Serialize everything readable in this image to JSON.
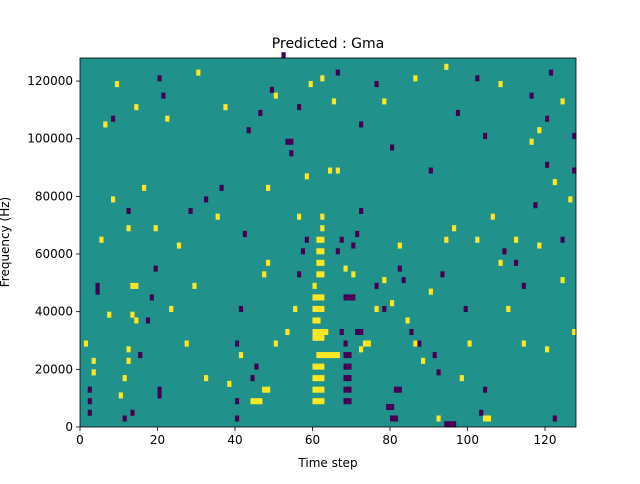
{
  "chart_data": {
    "type": "heatmap",
    "title": "Predicted : Gma",
    "xlabel": "Time step",
    "ylabel": "Frequency (Hz)",
    "xlim": [
      0,
      128
    ],
    "ylim": [
      0,
      128000
    ],
    "x_ticks": [
      {
        "value": 0,
        "label": "0"
      },
      {
        "value": 20,
        "label": "20"
      },
      {
        "value": 40,
        "label": "40"
      },
      {
        "value": 60,
        "label": "60"
      },
      {
        "value": 80,
        "label": "80"
      },
      {
        "value": 100,
        "label": "100"
      },
      {
        "value": 120,
        "label": "120"
      }
    ],
    "y_ticks": [
      {
        "value": 0,
        "label": "0"
      },
      {
        "value": 20000,
        "label": "20000"
      },
      {
        "value": 40000,
        "label": "40000"
      },
      {
        "value": 60000,
        "label": "60000"
      },
      {
        "value": 80000,
        "label": "80000"
      },
      {
        "value": 100000,
        "label": "100000"
      },
      {
        "value": 120000,
        "label": "120000"
      }
    ],
    "n_time_steps": 128,
    "n_frequency_bins": 64,
    "colormap": "viridis",
    "color_levels": {
      "low": "#440154",
      "mid": "#21918c",
      "high": "#fde725"
    },
    "background_level": "mid",
    "grid": false,
    "legend": "none",
    "cells": [
      {
        "t": 60,
        "f": 9000,
        "v": "high"
      },
      {
        "t": 61,
        "f": 9000,
        "v": "high"
      },
      {
        "t": 62,
        "f": 9000,
        "v": "high"
      },
      {
        "t": 60,
        "f": 13000,
        "v": "high"
      },
      {
        "t": 61,
        "f": 13000,
        "v": "high"
      },
      {
        "t": 62,
        "f": 13000,
        "v": "high"
      },
      {
        "t": 60,
        "f": 17000,
        "v": "high"
      },
      {
        "t": 61,
        "f": 17000,
        "v": "high"
      },
      {
        "t": 62,
        "f": 17000,
        "v": "high"
      },
      {
        "t": 60,
        "f": 21000,
        "v": "high"
      },
      {
        "t": 61,
        "f": 21000,
        "v": "high"
      },
      {
        "t": 62,
        "f": 21000,
        "v": "high"
      },
      {
        "t": 61,
        "f": 25000,
        "v": "high"
      },
      {
        "t": 62,
        "f": 25000,
        "v": "high"
      },
      {
        "t": 63,
        "f": 25000,
        "v": "high"
      },
      {
        "t": 64,
        "f": 25000,
        "v": "high"
      },
      {
        "t": 65,
        "f": 25000,
        "v": "high"
      },
      {
        "t": 66,
        "f": 25000,
        "v": "high"
      },
      {
        "t": 60,
        "f": 31000,
        "v": "high"
      },
      {
        "t": 61,
        "f": 31000,
        "v": "high"
      },
      {
        "t": 62,
        "f": 31000,
        "v": "high"
      },
      {
        "t": 60,
        "f": 33000,
        "v": "high"
      },
      {
        "t": 61,
        "f": 33000,
        "v": "high"
      },
      {
        "t": 62,
        "f": 33000,
        "v": "high"
      },
      {
        "t": 63,
        "f": 33000,
        "v": "high"
      },
      {
        "t": 60,
        "f": 37000,
        "v": "high"
      },
      {
        "t": 61,
        "f": 37000,
        "v": "high"
      },
      {
        "t": 60,
        "f": 41000,
        "v": "high"
      },
      {
        "t": 61,
        "f": 41000,
        "v": "high"
      },
      {
        "t": 62,
        "f": 41000,
        "v": "high"
      },
      {
        "t": 60,
        "f": 45000,
        "v": "high"
      },
      {
        "t": 61,
        "f": 45000,
        "v": "high"
      },
      {
        "t": 62,
        "f": 45000,
        "v": "high"
      },
      {
        "t": 60,
        "f": 49000,
        "v": "high"
      },
      {
        "t": 61,
        "f": 53000,
        "v": "high"
      },
      {
        "t": 62,
        "f": 53000,
        "v": "high"
      },
      {
        "t": 61,
        "f": 57000,
        "v": "high"
      },
      {
        "t": 62,
        "f": 57000,
        "v": "high"
      },
      {
        "t": 61,
        "f": 61000,
        "v": "high"
      },
      {
        "t": 62,
        "f": 61000,
        "v": "high"
      },
      {
        "t": 61,
        "f": 65000,
        "v": "high"
      },
      {
        "t": 62,
        "f": 65000,
        "v": "high"
      },
      {
        "t": 62,
        "f": 69000,
        "v": "high"
      },
      {
        "t": 62,
        "f": 73000,
        "v": "high"
      },
      {
        "t": 68,
        "f": 9000,
        "v": "low"
      },
      {
        "t": 69,
        "f": 9000,
        "v": "low"
      },
      {
        "t": 68,
        "f": 13000,
        "v": "low"
      },
      {
        "t": 69,
        "f": 13000,
        "v": "low"
      },
      {
        "t": 68,
        "f": 17000,
        "v": "low"
      },
      {
        "t": 69,
        "f": 17000,
        "v": "low"
      },
      {
        "t": 68,
        "f": 21000,
        "v": "low"
      },
      {
        "t": 69,
        "f": 21000,
        "v": "low"
      },
      {
        "t": 68,
        "f": 25000,
        "v": "low"
      },
      {
        "t": 69,
        "f": 25000,
        "v": "low"
      },
      {
        "t": 68,
        "f": 29000,
        "v": "low"
      },
      {
        "t": 67,
        "f": 33000,
        "v": "low"
      },
      {
        "t": 68,
        "f": 45000,
        "v": "low"
      },
      {
        "t": 69,
        "f": 45000,
        "v": "low"
      },
      {
        "t": 70,
        "f": 45000,
        "v": "low"
      },
      {
        "t": 71,
        "f": 33000,
        "v": "low"
      },
      {
        "t": 72,
        "f": 33000,
        "v": "low"
      },
      {
        "t": 53,
        "f": 99000,
        "v": "low"
      },
      {
        "t": 54,
        "f": 99000,
        "v": "low"
      },
      {
        "t": 54,
        "f": 95000,
        "v": "low"
      },
      {
        "t": 81,
        "f": 13000,
        "v": "low"
      },
      {
        "t": 82,
        "f": 13000,
        "v": "low"
      },
      {
        "t": 79,
        "f": 7000,
        "v": "low"
      },
      {
        "t": 80,
        "f": 7000,
        "v": "low"
      },
      {
        "t": 80,
        "f": 3000,
        "v": "low"
      },
      {
        "t": 81,
        "f": 3000,
        "v": "low"
      },
      {
        "t": 94,
        "f": 1000,
        "v": "low"
      },
      {
        "t": 95,
        "f": 1000,
        "v": "low"
      },
      {
        "t": 96,
        "f": 1000,
        "v": "low"
      },
      {
        "t": 4,
        "f": 49000,
        "v": "low"
      },
      {
        "t": 4,
        "f": 47000,
        "v": "low"
      },
      {
        "t": 2,
        "f": 5000,
        "v": "low"
      },
      {
        "t": 2,
        "f": 9000,
        "v": "low"
      },
      {
        "t": 2,
        "f": 13000,
        "v": "low"
      },
      {
        "t": 11,
        "f": 3000,
        "v": "low"
      },
      {
        "t": 13,
        "f": 5000,
        "v": "low"
      },
      {
        "t": 20,
        "f": 11000,
        "v": "low"
      },
      {
        "t": 20,
        "f": 13000,
        "v": "low"
      },
      {
        "t": 15,
        "f": 25000,
        "v": "low"
      },
      {
        "t": 17,
        "f": 37000,
        "v": "low"
      },
      {
        "t": 18,
        "f": 45000,
        "v": "low"
      },
      {
        "t": 19,
        "f": 55000,
        "v": "low"
      },
      {
        "t": 40,
        "f": 3000,
        "v": "low"
      },
      {
        "t": 40,
        "f": 9000,
        "v": "low"
      },
      {
        "t": 44,
        "f": 17000,
        "v": "low"
      },
      {
        "t": 45,
        "f": 21000,
        "v": "low"
      },
      {
        "t": 40,
        "f": 29000,
        "v": "low"
      },
      {
        "t": 41,
        "f": 41000,
        "v": "low"
      },
      {
        "t": 42,
        "f": 67000,
        "v": "low"
      },
      {
        "t": 43,
        "f": 103000,
        "v": "low"
      },
      {
        "t": 56,
        "f": 53000,
        "v": "low"
      },
      {
        "t": 58,
        "f": 65000,
        "v": "low"
      },
      {
        "t": 57,
        "f": 61000,
        "v": "low"
      },
      {
        "t": 66,
        "f": 61000,
        "v": "low"
      },
      {
        "t": 67,
        "f": 65000,
        "v": "low"
      },
      {
        "t": 70,
        "f": 63000,
        "v": "low"
      },
      {
        "t": 71,
        "f": 67000,
        "v": "low"
      },
      {
        "t": 72,
        "f": 75000,
        "v": "low"
      },
      {
        "t": 76,
        "f": 49000,
        "v": "low"
      },
      {
        "t": 78,
        "f": 41000,
        "v": "low"
      },
      {
        "t": 82,
        "f": 55000,
        "v": "low"
      },
      {
        "t": 83,
        "f": 51000,
        "v": "low"
      },
      {
        "t": 85,
        "f": 33000,
        "v": "low"
      },
      {
        "t": 87,
        "f": 29000,
        "v": "low"
      },
      {
        "t": 91,
        "f": 25000,
        "v": "low"
      },
      {
        "t": 92,
        "f": 19000,
        "v": "low"
      },
      {
        "t": 99,
        "f": 41000,
        "v": "low"
      },
      {
        "t": 103,
        "f": 5000,
        "v": "low"
      },
      {
        "t": 104,
        "f": 13000,
        "v": "low"
      },
      {
        "t": 109,
        "f": 61000,
        "v": "low"
      },
      {
        "t": 112,
        "f": 57000,
        "v": "low"
      },
      {
        "t": 114,
        "f": 49000,
        "v": "low"
      },
      {
        "t": 117,
        "f": 77000,
        "v": "low"
      },
      {
        "t": 120,
        "f": 91000,
        "v": "low"
      },
      {
        "t": 122,
        "f": 3000,
        "v": "low"
      },
      {
        "t": 124,
        "f": 65000,
        "v": "low"
      },
      {
        "t": 127,
        "f": 101000,
        "v": "low"
      },
      {
        "t": 127,
        "f": 89000,
        "v": "low"
      },
      {
        "t": 90,
        "f": 89000,
        "v": "low"
      },
      {
        "t": 93,
        "f": 53000,
        "v": "low"
      },
      {
        "t": 97,
        "f": 109000,
        "v": "low"
      },
      {
        "t": 102,
        "f": 121000,
        "v": "low"
      },
      {
        "t": 104,
        "f": 101000,
        "v": "low"
      },
      {
        "t": 116,
        "f": 115000,
        "v": "low"
      },
      {
        "t": 120,
        "f": 107000,
        "v": "low"
      },
      {
        "t": 121,
        "f": 123000,
        "v": "low"
      },
      {
        "t": 8,
        "f": 107000,
        "v": "low"
      },
      {
        "t": 12,
        "f": 75000,
        "v": "low"
      },
      {
        "t": 20,
        "f": 121000,
        "v": "low"
      },
      {
        "t": 21,
        "f": 115000,
        "v": "low"
      },
      {
        "t": 28,
        "f": 75000,
        "v": "low"
      },
      {
        "t": 32,
        "f": 79000,
        "v": "low"
      },
      {
        "t": 36,
        "f": 83000,
        "v": "low"
      },
      {
        "t": 46,
        "f": 109000,
        "v": "low"
      },
      {
        "t": 49,
        "f": 117000,
        "v": "low"
      },
      {
        "t": 52,
        "f": 129000,
        "v": "low"
      },
      {
        "t": 56,
        "f": 111000,
        "v": "low"
      },
      {
        "t": 66,
        "f": 123000,
        "v": "low"
      },
      {
        "t": 72,
        "f": 105000,
        "v": "low"
      },
      {
        "t": 76,
        "f": 119000,
        "v": "low"
      },
      {
        "t": 80,
        "f": 97000,
        "v": "low"
      },
      {
        "t": 1,
        "f": 29000,
        "v": "high"
      },
      {
        "t": 3,
        "f": 23000,
        "v": "high"
      },
      {
        "t": 3,
        "f": 19000,
        "v": "high"
      },
      {
        "t": 5,
        "f": 65000,
        "v": "high"
      },
      {
        "t": 7,
        "f": 39000,
        "v": "high"
      },
      {
        "t": 8,
        "f": 79000,
        "v": "high"
      },
      {
        "t": 10,
        "f": 11000,
        "v": "high"
      },
      {
        "t": 11,
        "f": 17000,
        "v": "high"
      },
      {
        "t": 12,
        "f": 23000,
        "v": "high"
      },
      {
        "t": 12,
        "f": 27000,
        "v": "high"
      },
      {
        "t": 13,
        "f": 39000,
        "v": "high"
      },
      {
        "t": 14,
        "f": 37000,
        "v": "high"
      },
      {
        "t": 13,
        "f": 49000,
        "v": "high"
      },
      {
        "t": 14,
        "f": 49000,
        "v": "high"
      },
      {
        "t": 12,
        "f": 69000,
        "v": "high"
      },
      {
        "t": 16,
        "f": 83000,
        "v": "high"
      },
      {
        "t": 19,
        "f": 69000,
        "v": "high"
      },
      {
        "t": 23,
        "f": 41000,
        "v": "high"
      },
      {
        "t": 25,
        "f": 63000,
        "v": "high"
      },
      {
        "t": 27,
        "f": 29000,
        "v": "high"
      },
      {
        "t": 29,
        "f": 49000,
        "v": "high"
      },
      {
        "t": 32,
        "f": 17000,
        "v": "high"
      },
      {
        "t": 35,
        "f": 73000,
        "v": "high"
      },
      {
        "t": 38,
        "f": 15000,
        "v": "high"
      },
      {
        "t": 41,
        "f": 25000,
        "v": "high"
      },
      {
        "t": 44,
        "f": 9000,
        "v": "high"
      },
      {
        "t": 45,
        "f": 9000,
        "v": "high"
      },
      {
        "t": 46,
        "f": 9000,
        "v": "high"
      },
      {
        "t": 47,
        "f": 13000,
        "v": "high"
      },
      {
        "t": 48,
        "f": 13000,
        "v": "high"
      },
      {
        "t": 47,
        "f": 53000,
        "v": "high"
      },
      {
        "t": 48,
        "f": 57000,
        "v": "high"
      },
      {
        "t": 48,
        "f": 83000,
        "v": "high"
      },
      {
        "t": 50,
        "f": 29000,
        "v": "high"
      },
      {
        "t": 53,
        "f": 33000,
        "v": "high"
      },
      {
        "t": 55,
        "f": 41000,
        "v": "high"
      },
      {
        "t": 56,
        "f": 73000,
        "v": "high"
      },
      {
        "t": 58,
        "f": 87000,
        "v": "high"
      },
      {
        "t": 59,
        "f": 119000,
        "v": "high"
      },
      {
        "t": 64,
        "f": 89000,
        "v": "high"
      },
      {
        "t": 65,
        "f": 113000,
        "v": "high"
      },
      {
        "t": 66,
        "f": 89000,
        "v": "high"
      },
      {
        "t": 68,
        "f": 55000,
        "v": "high"
      },
      {
        "t": 70,
        "f": 53000,
        "v": "high"
      },
      {
        "t": 72,
        "f": 27000,
        "v": "high"
      },
      {
        "t": 73,
        "f": 29000,
        "v": "high"
      },
      {
        "t": 74,
        "f": 29000,
        "v": "high"
      },
      {
        "t": 76,
        "f": 41000,
        "v": "high"
      },
      {
        "t": 78,
        "f": 51000,
        "v": "high"
      },
      {
        "t": 80,
        "f": 43000,
        "v": "high"
      },
      {
        "t": 82,
        "f": 63000,
        "v": "high"
      },
      {
        "t": 84,
        "f": 37000,
        "v": "high"
      },
      {
        "t": 86,
        "f": 29000,
        "v": "high"
      },
      {
        "t": 88,
        "f": 23000,
        "v": "high"
      },
      {
        "t": 90,
        "f": 47000,
        "v": "high"
      },
      {
        "t": 92,
        "f": 3000,
        "v": "high"
      },
      {
        "t": 94,
        "f": 65000,
        "v": "high"
      },
      {
        "t": 96,
        "f": 69000,
        "v": "high"
      },
      {
        "t": 98,
        "f": 17000,
        "v": "high"
      },
      {
        "t": 100,
        "f": 29000,
        "v": "high"
      },
      {
        "t": 102,
        "f": 65000,
        "v": "high"
      },
      {
        "t": 104,
        "f": 3000,
        "v": "high"
      },
      {
        "t": 105,
        "f": 3000,
        "v": "high"
      },
      {
        "t": 106,
        "f": 73000,
        "v": "high"
      },
      {
        "t": 108,
        "f": 57000,
        "v": "high"
      },
      {
        "t": 110,
        "f": 41000,
        "v": "high"
      },
      {
        "t": 112,
        "f": 65000,
        "v": "high"
      },
      {
        "t": 114,
        "f": 29000,
        "v": "high"
      },
      {
        "t": 116,
        "f": 99000,
        "v": "high"
      },
      {
        "t": 118,
        "f": 63000,
        "v": "high"
      },
      {
        "t": 120,
        "f": 27000,
        "v": "high"
      },
      {
        "t": 122,
        "f": 85000,
        "v": "high"
      },
      {
        "t": 124,
        "f": 51000,
        "v": "high"
      },
      {
        "t": 126,
        "f": 79000,
        "v": "high"
      },
      {
        "t": 127,
        "f": 33000,
        "v": "high"
      },
      {
        "t": 6,
        "f": 105000,
        "v": "high"
      },
      {
        "t": 9,
        "f": 119000,
        "v": "high"
      },
      {
        "t": 14,
        "f": 111000,
        "v": "high"
      },
      {
        "t": 22,
        "f": 107000,
        "v": "high"
      },
      {
        "t": 30,
        "f": 123000,
        "v": "high"
      },
      {
        "t": 37,
        "f": 111000,
        "v": "high"
      },
      {
        "t": 50,
        "f": 115000,
        "v": "high"
      },
      {
        "t": 62,
        "f": 121000,
        "v": "high"
      },
      {
        "t": 78,
        "f": 113000,
        "v": "high"
      },
      {
        "t": 86,
        "f": 121000,
        "v": "high"
      },
      {
        "t": 94,
        "f": 125000,
        "v": "high"
      },
      {
        "t": 108,
        "f": 119000,
        "v": "high"
      },
      {
        "t": 118,
        "f": 103000,
        "v": "high"
      },
      {
        "t": 124,
        "f": 113000,
        "v": "high"
      }
    ]
  }
}
